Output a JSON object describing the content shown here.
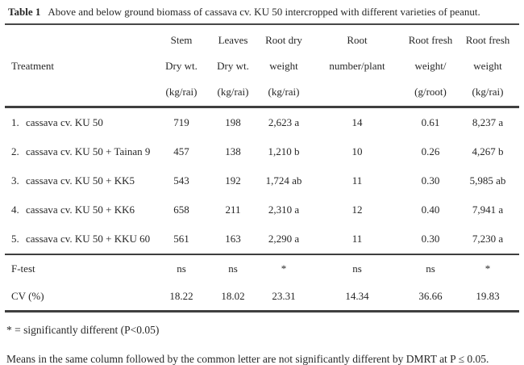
{
  "title": {
    "label": "Table 1",
    "text": "Above and below ground biomass of cassava cv. KU 50 intercropped with different varieties of peanut."
  },
  "table": {
    "treatment_header": "Treatment",
    "columns": [
      {
        "key": "stem-dry-wt",
        "lines": [
          "Stem",
          "Dry wt.",
          "(kg/rai)"
        ]
      },
      {
        "key": "leaves-dry-wt",
        "lines": [
          "Leaves",
          "Dry wt.",
          "(kg/rai)"
        ]
      },
      {
        "key": "root-dry-weight",
        "lines": [
          "Root dry",
          "weight",
          "(kg/rai)"
        ]
      },
      {
        "key": "root-number-per-plant",
        "lines": [
          "Root",
          "number/plant",
          ""
        ]
      },
      {
        "key": "root-fresh-weight-per-root",
        "lines": [
          "Root fresh",
          "weight/",
          "(g/root)"
        ]
      },
      {
        "key": "root-fresh-weight-total",
        "lines": [
          "Root fresh",
          "weight",
          "(kg/rai)"
        ]
      }
    ],
    "rows": [
      {
        "num": "1.",
        "treatment": "cassava cv. KU 50",
        "values": [
          "719",
          "198",
          "2,623 a",
          "14",
          "0.61",
          "8,237 a"
        ]
      },
      {
        "num": "2.",
        "treatment": "cassava cv. KU 50 + Tainan 9",
        "values": [
          "457",
          "138",
          "1,210 b",
          "10",
          "0.26",
          "4,267 b"
        ]
      },
      {
        "num": "3.",
        "treatment": "cassava cv. KU 50 + KK5",
        "values": [
          "543",
          "192",
          "1,724 ab",
          "11",
          "0.30",
          "5,985 ab"
        ]
      },
      {
        "num": "4.",
        "treatment": "cassava cv. KU 50 + KK6",
        "values": [
          "658",
          "211",
          "2,310 a",
          "12",
          "0.40",
          "7,941 a"
        ]
      },
      {
        "num": "5.",
        "treatment": "cassava cv. KU 50 + KKU 60",
        "values": [
          "561",
          "163",
          "2,290 a",
          "11",
          "0.30",
          "7,230 a"
        ]
      }
    ],
    "stat_rows": [
      {
        "key": "ftest",
        "label": "F-test",
        "values": [
          "ns",
          "ns",
          "*",
          "ns",
          "ns",
          "*"
        ]
      },
      {
        "key": "cv",
        "label": "CV (%)",
        "values": [
          "18.22",
          "18.02",
          "23.31",
          "14.34",
          "36.66",
          "19.83"
        ]
      }
    ]
  },
  "notes": [
    "* = significantly different (P<0.05)",
    "Means in the same column followed by the common letter are not significantly different by DMRT at P ≤ 0.05."
  ],
  "colors": {
    "text": "#272727",
    "rule": "#474747",
    "background": "#ffffff"
  }
}
